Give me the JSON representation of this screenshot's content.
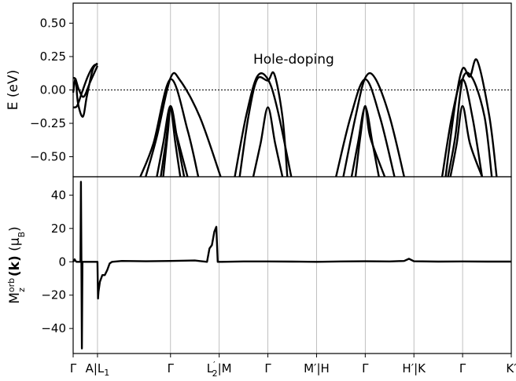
{
  "chart_data": [
    {
      "type": "line",
      "panel": "top",
      "ylabel": "E (eV)",
      "ylim": [
        -0.65,
        0.65
      ],
      "yticks": [
        "0.50",
        "0.25",
        "0.00",
        "−0.25",
        "−0.50"
      ],
      "yticks_values": [
        0.5,
        0.25,
        0.0,
        -0.25,
        -0.5
      ],
      "annotation": "Hole-doping",
      "fermi_level": 0.0,
      "grid": "vertical lines at high-symmetry points",
      "series": [
        {
          "x": [
            0.0,
            0.05,
            0.1,
            0.2,
            0.28,
            0.4,
            0.5
          ],
          "y": [
            -0.02,
            0.08,
            -0.1,
            -0.2,
            -0.05,
            0.15,
            0.2
          ]
        },
        {
          "x": [
            0.0,
            0.08,
            0.18,
            0.3,
            0.42,
            0.5
          ],
          "y": [
            -0.13,
            -0.12,
            -0.02,
            0.1,
            0.18,
            0.19
          ]
        },
        {
          "x": [
            0.0,
            0.05,
            0.12,
            0.22,
            0.35,
            0.5
          ],
          "y": [
            0.09,
            0.08,
            0.0,
            -0.05,
            0.06,
            0.18
          ]
        },
        {
          "x": [
            1.38,
            1.65,
            2.0,
            2.35,
            2.57
          ],
          "y": [
            -0.65,
            -0.4,
            0.08,
            -0.3,
            -0.65
          ]
        },
        {
          "x": [
            1.49,
            1.72,
            2.0,
            2.2,
            2.6,
            3.03
          ],
          "y": [
            -0.65,
            -0.35,
            0.09,
            0.07,
            -0.2,
            -0.65
          ]
        },
        {
          "x": [
            1.72,
            1.85,
            2.0,
            2.15,
            2.28
          ],
          "y": [
            -0.65,
            -0.4,
            -0.12,
            -0.4,
            -0.65
          ]
        },
        {
          "x": [
            1.8,
            1.9,
            2.0,
            2.1,
            2.2
          ],
          "y": [
            -0.65,
            -0.4,
            -0.15,
            -0.4,
            -0.65
          ]
        },
        {
          "x": [
            1.85,
            1.95,
            2.0,
            2.1,
            2.35
          ],
          "y": [
            -0.65,
            -0.3,
            -0.13,
            -0.3,
            -0.65
          ]
        },
        {
          "x": [
            3.32,
            3.55,
            3.78,
            4.0,
            4.2,
            4.48
          ],
          "y": [
            -0.65,
            -0.2,
            0.1,
            0.08,
            -0.15,
            -0.65
          ]
        },
        {
          "x": [
            3.42,
            3.6,
            3.78,
            4.0,
            4.13,
            4.3,
            4.4
          ],
          "y": [
            -0.65,
            -0.2,
            0.08,
            0.07,
            0.12,
            -0.2,
            -0.65
          ]
        },
        {
          "x": [
            3.7,
            3.85,
            4.0,
            4.15,
            4.3
          ],
          "y": [
            -0.65,
            -0.4,
            -0.13,
            -0.4,
            -0.65
          ]
        },
        {
          "x": [
            5.4,
            5.7,
            6.0,
            6.3,
            6.6
          ],
          "y": [
            -0.65,
            -0.2,
            0.08,
            -0.2,
            -0.65
          ]
        },
        {
          "x": [
            5.55,
            5.8,
            6.0,
            6.2,
            6.5,
            6.8
          ],
          "y": [
            -0.65,
            -0.2,
            0.09,
            0.09,
            -0.2,
            -0.65
          ]
        },
        {
          "x": [
            5.72,
            5.85,
            6.0,
            6.15,
            6.28
          ],
          "y": [
            -0.65,
            -0.4,
            -0.13,
            -0.4,
            -0.65
          ]
        },
        {
          "x": [
            5.8,
            5.9,
            6.0,
            6.1,
            6.4
          ],
          "y": [
            -0.65,
            -0.35,
            -0.12,
            -0.35,
            -0.65
          ]
        },
        {
          "x": [
            7.58,
            7.78,
            8.0,
            8.2,
            8.4
          ],
          "y": [
            -0.65,
            -0.2,
            0.08,
            -0.2,
            -0.65
          ]
        },
        {
          "x": [
            7.65,
            7.85,
            8.0,
            8.15,
            8.3,
            8.55,
            8.7
          ],
          "y": [
            -0.65,
            -0.1,
            0.16,
            0.1,
            0.22,
            -0.2,
            -0.65
          ]
        },
        {
          "x": [
            7.7,
            7.85,
            8.0,
            8.2,
            8.45,
            8.6
          ],
          "y": [
            -0.65,
            -0.35,
            0.08,
            0.09,
            -0.2,
            -0.65
          ]
        },
        {
          "x": [
            7.75,
            7.88,
            8.0,
            8.15,
            8.4
          ],
          "y": [
            -0.65,
            -0.4,
            -0.12,
            -0.4,
            -0.65
          ]
        }
      ]
    },
    {
      "type": "line",
      "panel": "bottom",
      "ylabel_main": "M",
      "ylabel_sup": "orb",
      "ylabel_sub": "z",
      "ylabel_bold": "(k)",
      "ylabel_unit_open": " (μ",
      "ylabel_unit_sub": "B",
      "ylabel_unit_close": ")",
      "ylim": [
        -55,
        51
      ],
      "yticks": [
        "40",
        "20",
        "0",
        "−20",
        "−40"
      ],
      "yticks_values": [
        40,
        20,
        0,
        -20,
        -40
      ],
      "xticks": [
        "Γ",
        "A|L",
        "Γ",
        "L",
        "Γ",
        "M′|H",
        "Γ",
        "H′|K",
        "Γ",
        "K′"
      ],
      "xtick_L1_sub": "1",
      "xtick_L2_prime": "′",
      "xtick_L2_sub": "2",
      "xtick_L2_rest": "|M",
      "xticks_values": [
        0,
        0.5,
        2,
        3,
        4,
        5,
        6,
        7,
        8,
        9
      ],
      "grid": "vertical lines at high-symmetry points",
      "xlim": [
        0,
        9
      ],
      "series": [
        {
          "x": [
            0,
            0.03,
            0.05,
            0.07,
            0.1,
            0.15,
            0.16,
            0.17,
            0.18,
            0.19,
            0.2,
            0.25,
            0.35,
            0.45,
            0.5,
            0.51,
            0.52,
            0.55,
            0.6,
            0.65,
            0.7,
            0.75,
            0.8,
            1.0,
            1.5,
            2.0,
            2.5,
            2.75,
            2.8,
            2.85,
            2.9,
            2.94,
            2.97,
            3.0,
            3.02,
            3.05,
            3.5,
            4.0,
            4.5,
            5.0,
            5.5,
            6.0,
            6.5,
            6.8,
            6.9,
            7.0,
            7.5,
            8.0,
            8.5,
            9.0
          ],
          "y": [
            0,
            1.5,
            0.5,
            0,
            0,
            0,
            48,
            0,
            -52,
            0,
            0,
            0,
            0,
            0,
            0,
            -22,
            -18,
            -12,
            -8,
            -8,
            -5,
            -1,
            0,
            0.5,
            0.3,
            0.5,
            0.8,
            0,
            8,
            10,
            18,
            21,
            0,
            0,
            0,
            0,
            0.2,
            0.2,
            0.1,
            0,
            0.2,
            0.3,
            0.2,
            0.5,
            1.8,
            0.3,
            0.1,
            0.2,
            0.1,
            0.1
          ]
        }
      ]
    }
  ]
}
